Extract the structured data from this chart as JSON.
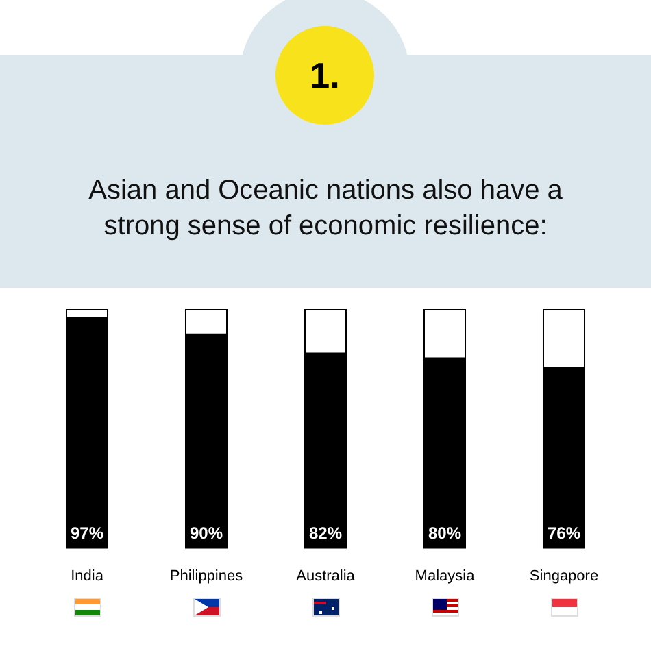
{
  "chart_data": {
    "type": "bar",
    "title": "Asian and Oceanic nations also have a strong sense of economic resilience:",
    "annotations": [
      "1."
    ],
    "categories": [
      "India",
      "Philippines",
      "Australia",
      "Malaysia",
      "Singapore"
    ],
    "values": [
      97,
      90,
      82,
      80,
      76
    ],
    "value_labels": [
      "97%",
      "90%",
      "82%",
      "80%",
      "76%"
    ],
    "color": "#000000",
    "ylim": [
      0,
      100
    ],
    "grid": false,
    "legend": false
  }
}
